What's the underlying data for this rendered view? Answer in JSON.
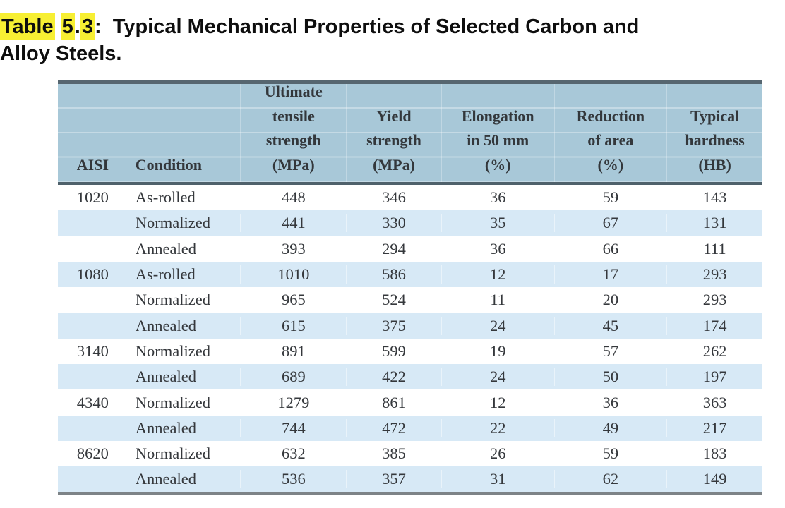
{
  "colors": {
    "highlight_yellow": "#f7ef33",
    "header_bg": "#a8c8d8",
    "row_alt_bg": "#d7e9f6",
    "rule_dark": "#566670",
    "rule_header_bottom": "#4f616b",
    "rule_bottom_gray": "#7d8387",
    "body_text": "#35383c",
    "header_text": "#33373b"
  },
  "caption": {
    "full_text": "Table 5.3:  Typical Mechanical Properties of Selected Carbon and Alloy Steels.",
    "lines": [
      {
        "segments": [
          {
            "text": "Table",
            "highlight": true
          },
          {
            "text": " ",
            "highlight": false
          },
          {
            "text": "5",
            "highlight": true
          },
          {
            "text": ".",
            "highlight": false
          },
          {
            "text": "3",
            "highlight": true
          },
          {
            "text": ":  ",
            "highlight": false
          },
          {
            "text": "Typical Mechanical Properties of Selected Carbon and",
            "highlight": false
          }
        ]
      },
      {
        "segments": [
          {
            "text": "Alloy Steels.",
            "highlight": false
          }
        ]
      }
    ]
  },
  "table": {
    "columns": [
      {
        "id": "aisi",
        "width_pct": 10,
        "align": "center",
        "header_lines": [
          "AISI"
        ]
      },
      {
        "id": "condition",
        "width_pct": 16,
        "align": "left",
        "header_lines": [
          "Condition"
        ]
      },
      {
        "id": "uts",
        "width_pct": 15,
        "align": "center",
        "header_lines": [
          "Ultimate",
          "tensile",
          "strength",
          "(MPa)"
        ]
      },
      {
        "id": "yield",
        "width_pct": 13.5,
        "align": "center",
        "header_lines": [
          "Yield",
          "strength",
          "(MPa)"
        ]
      },
      {
        "id": "elongation",
        "width_pct": 16,
        "align": "center",
        "header_lines": [
          "Elongation",
          "in 50 mm",
          "(%)"
        ]
      },
      {
        "id": "reduction",
        "width_pct": 16,
        "align": "center",
        "header_lines": [
          "Reduction",
          "of area",
          "(%)"
        ]
      },
      {
        "id": "hardness",
        "width_pct": 13.5,
        "align": "center",
        "header_lines": [
          "Typical",
          "hardness",
          "(HB)"
        ]
      }
    ],
    "rows": [
      {
        "aisi": "1020",
        "condition": "As-rolled",
        "uts": "448",
        "yield": "346",
        "elongation": "36",
        "reduction": "59",
        "hardness": "143"
      },
      {
        "aisi": "",
        "condition": "Normalized",
        "uts": "441",
        "yield": "330",
        "elongation": "35",
        "reduction": "67",
        "hardness": "131"
      },
      {
        "aisi": "",
        "condition": "Annealed",
        "uts": "393",
        "yield": "294",
        "elongation": "36",
        "reduction": "66",
        "hardness": "111"
      },
      {
        "aisi": "1080",
        "condition": "As-rolled",
        "uts": "1010",
        "yield": "586",
        "elongation": "12",
        "reduction": "17",
        "hardness": "293"
      },
      {
        "aisi": "",
        "condition": "Normalized",
        "uts": "965",
        "yield": "524",
        "elongation": "11",
        "reduction": "20",
        "hardness": "293"
      },
      {
        "aisi": "",
        "condition": "Annealed",
        "uts": "615",
        "yield": "375",
        "elongation": "24",
        "reduction": "45",
        "hardness": "174"
      },
      {
        "aisi": "3140",
        "condition": "Normalized",
        "uts": "891",
        "yield": "599",
        "elongation": "19",
        "reduction": "57",
        "hardness": "262"
      },
      {
        "aisi": "",
        "condition": "Annealed",
        "uts": "689",
        "yield": "422",
        "elongation": "24",
        "reduction": "50",
        "hardness": "197"
      },
      {
        "aisi": "4340",
        "condition": "Normalized",
        "uts": "1279",
        "yield": "861",
        "elongation": "12",
        "reduction": "36",
        "hardness": "363"
      },
      {
        "aisi": "",
        "condition": "Annealed",
        "uts": "744",
        "yield": "472",
        "elongation": "22",
        "reduction": "49",
        "hardness": "217"
      },
      {
        "aisi": "8620",
        "condition": "Normalized",
        "uts": "632",
        "yield": "385",
        "elongation": "26",
        "reduction": "59",
        "hardness": "183"
      },
      {
        "aisi": "",
        "condition": "Annealed",
        "uts": "536",
        "yield": "357",
        "elongation": "31",
        "reduction": "62",
        "hardness": "149"
      }
    ]
  }
}
